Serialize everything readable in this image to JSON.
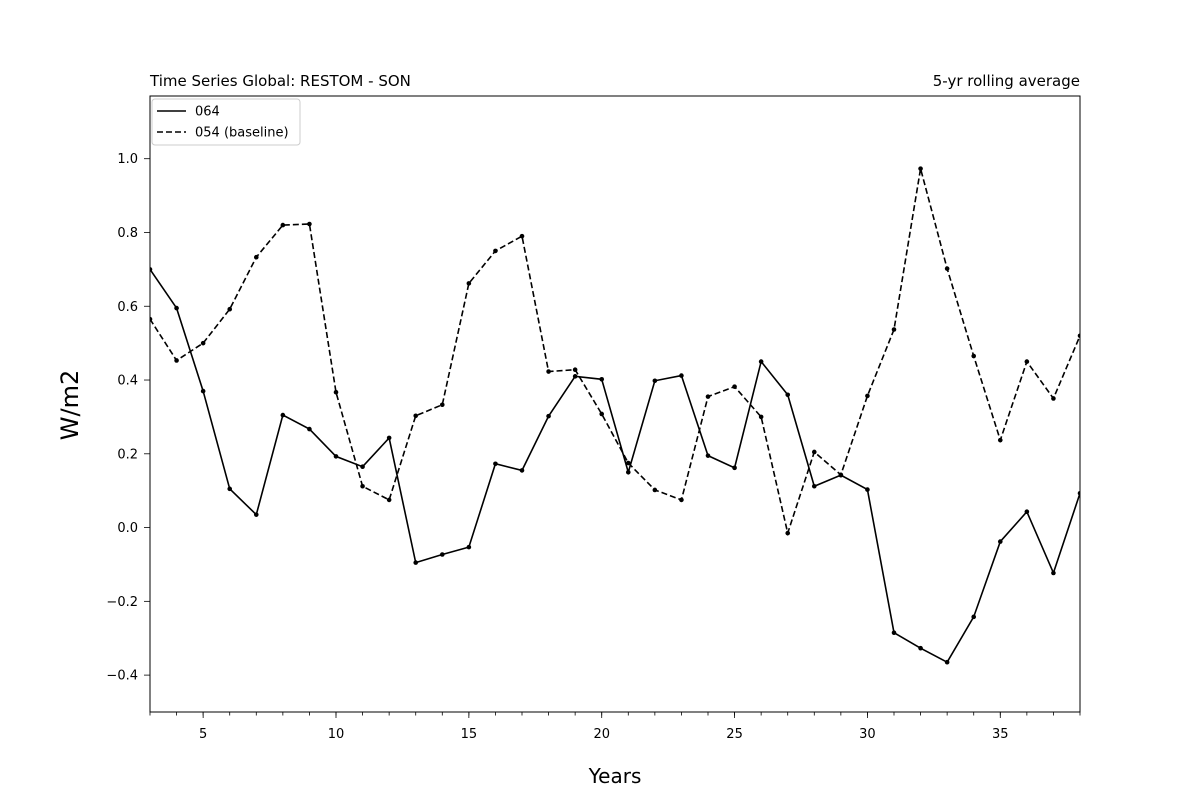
{
  "chart_data": {
    "type": "line",
    "title": "Time Series Global: RESTOM - SON",
    "subtitle": "5-yr rolling average",
    "xlabel": "Years",
    "ylabel": "W/m2",
    "xlim": [
      3,
      38
    ],
    "ylim": [
      -0.5,
      1.17
    ],
    "xticks_major": [
      5,
      10,
      15,
      20,
      25,
      30,
      35
    ],
    "xticks_minor": [
      3,
      4,
      5,
      6,
      7,
      8,
      9,
      10,
      11,
      12,
      13,
      14,
      15,
      16,
      17,
      18,
      19,
      20,
      21,
      22,
      23,
      24,
      25,
      26,
      27,
      28,
      29,
      30,
      31,
      32,
      33,
      34,
      35,
      36,
      37,
      38
    ],
    "yticks": [
      -0.4,
      -0.2,
      0.0,
      0.2,
      0.4,
      0.6,
      0.8,
      1.0
    ],
    "ytick_labels": [
      "−0.4",
      "−0.2",
      "0.0",
      "0.2",
      "0.4",
      "0.6",
      "0.8",
      "1.0"
    ],
    "xtick_labels": [
      "5",
      "10",
      "15",
      "20",
      "25",
      "30",
      "35"
    ],
    "grid": false,
    "legend_position": "top-left",
    "x": [
      3,
      4,
      5,
      6,
      7,
      8,
      9,
      10,
      11,
      12,
      13,
      14,
      15,
      16,
      17,
      18,
      19,
      20,
      21,
      22,
      23,
      24,
      25,
      26,
      27,
      28,
      29,
      30,
      31,
      32,
      33,
      34,
      35,
      36,
      37,
      38
    ],
    "series": [
      {
        "name": "064",
        "style": "solid",
        "color": "#000000",
        "values": [
          0.7,
          0.595,
          0.37,
          0.105,
          0.035,
          0.305,
          0.267,
          0.193,
          0.165,
          0.243,
          -0.095,
          -0.073,
          -0.053,
          0.173,
          0.155,
          0.302,
          0.41,
          0.402,
          0.15,
          0.398,
          0.412,
          0.195,
          0.162,
          0.45,
          0.36,
          0.112,
          0.142,
          0.103,
          -0.285,
          -0.327,
          -0.365,
          -0.242,
          -0.038,
          0.043,
          -0.123,
          0.093
        ]
      },
      {
        "name": "054 (baseline)",
        "style": "dashed",
        "color": "#000000",
        "values": [
          0.565,
          0.453,
          0.5,
          0.592,
          0.733,
          0.82,
          0.823,
          0.367,
          0.112,
          0.075,
          0.303,
          0.333,
          0.662,
          0.75,
          0.79,
          0.423,
          0.428,
          0.308,
          0.175,
          0.102,
          0.075,
          0.355,
          0.382,
          0.3,
          -0.015,
          0.205,
          0.143,
          0.357,
          0.537,
          0.973,
          0.702,
          0.465,
          0.237,
          0.45,
          0.35,
          0.52
        ]
      }
    ]
  }
}
